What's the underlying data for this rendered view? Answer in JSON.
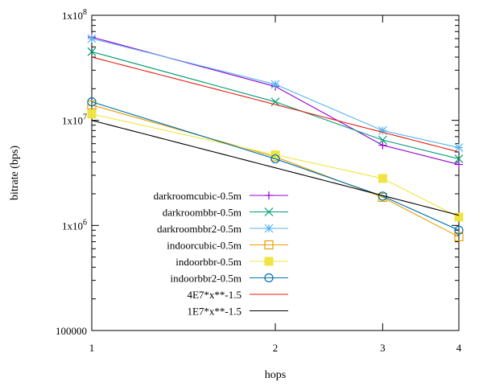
{
  "chart_data": {
    "type": "line",
    "title": "",
    "xlabel": "hops",
    "ylabel": "bitrate (bps)",
    "x_scale": "log",
    "y_scale": "log",
    "xlim": [
      1,
      4
    ],
    "ylim": [
      100000,
      100000000
    ],
    "x_ticks": [
      {
        "value": 1,
        "label": "1"
      },
      {
        "value": 2,
        "label": "2"
      },
      {
        "value": 3,
        "label": "3"
      },
      {
        "value": 4,
        "label": "4"
      }
    ],
    "y_ticks": [
      {
        "value": 100000,
        "label": "100000"
      },
      {
        "value": 1000000,
        "label": "1x10^6"
      },
      {
        "value": 10000000,
        "label": "1x10^7"
      },
      {
        "value": 100000000,
        "label": "1x10^8"
      }
    ],
    "grid": false,
    "legend_position": "inside-left",
    "series": [
      {
        "name": "darkroomcubic-0.5m",
        "color": "#9400d3",
        "marker": "plus",
        "x": [
          1,
          2,
          3,
          4
        ],
        "y": [
          62000000,
          21000000,
          5800000,
          3800000
        ]
      },
      {
        "name": "darkroombbr-0.5m",
        "color": "#009e73",
        "marker": "cross",
        "x": [
          1,
          2,
          3,
          4
        ],
        "y": [
          45000000,
          15000000,
          6500000,
          4300000
        ]
      },
      {
        "name": "darkroombbr2-0.5m",
        "color": "#56b4e9",
        "marker": "star",
        "x": [
          1,
          2,
          3,
          4
        ],
        "y": [
          60000000,
          22000000,
          8000000,
          5500000
        ]
      },
      {
        "name": "indoorcubic-0.5m",
        "color": "#e69f00",
        "marker": "square",
        "x": [
          1,
          2,
          3,
          4
        ],
        "y": [
          14000000,
          4500000,
          1850000,
          780000
        ]
      },
      {
        "name": "indoorbbr-0.5m",
        "color": "#f0e442",
        "marker": "filled-square",
        "x": [
          1,
          2,
          3,
          4
        ],
        "y": [
          11500000,
          4700000,
          2800000,
          1200000
        ]
      },
      {
        "name": "indoorbbr2-0.5m",
        "color": "#0072b2",
        "marker": "circle",
        "x": [
          1,
          2,
          3,
          4
        ],
        "y": [
          15000000,
          4300000,
          1900000,
          900000
        ]
      },
      {
        "name": "4E7*x**-1.5",
        "color": "#e51e10",
        "marker": "none",
        "fn": {
          "a": 40000000,
          "k": -1.5
        }
      },
      {
        "name": "1E7*x**-1.5",
        "color": "#000000",
        "marker": "none",
        "fn": {
          "a": 10000000,
          "k": -1.5
        }
      }
    ]
  }
}
